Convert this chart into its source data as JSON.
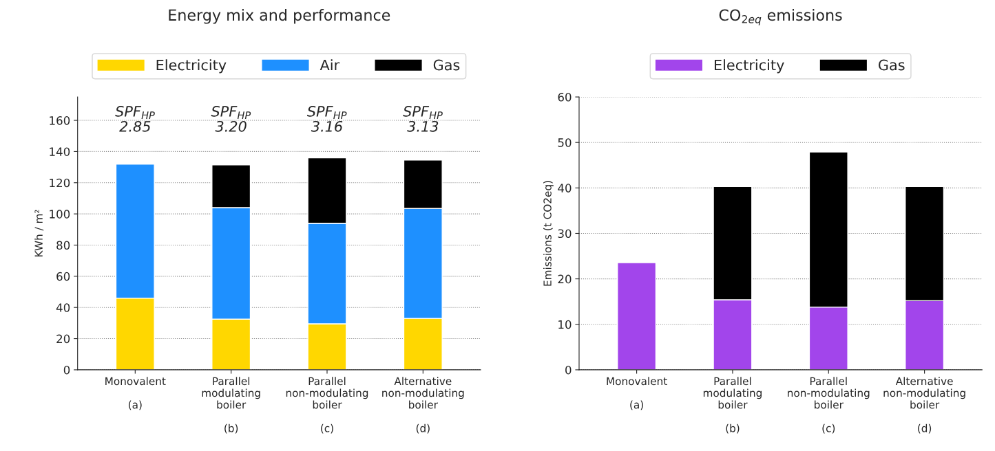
{
  "chart_data": [
    {
      "type": "bar",
      "title": "Energy mix and performance",
      "ylabel": "KWh / m²",
      "stacked": true,
      "legend": "top",
      "grid": "y",
      "categories": [
        "Monovalent\n\n(a)",
        "Parallel\nmodulating\nboiler\n\n(b)",
        "Parallel\nnon-modulating\nboiler\n\n(c)",
        "Alternative\nnon-modulating\nboiler\n\n(d)"
      ],
      "series": [
        {
          "name": "Electricity",
          "color": "#ffd700",
          "values": [
            46,
            32.5,
            29.5,
            33
          ]
        },
        {
          "name": "Air",
          "color": "#1e90ff",
          "values": [
            86,
            71.5,
            64.5,
            70.5
          ]
        },
        {
          "name": "Gas",
          "color": "#000000",
          "values": [
            null,
            27.5,
            42,
            31
          ]
        }
      ],
      "ylim": [
        0,
        175
      ],
      "yticks": [
        0,
        20,
        40,
        60,
        80,
        100,
        120,
        140,
        160
      ],
      "annotations": [
        "SPF$_{HP}$\n2.85",
        "SPF$_{HP}$\n3.20",
        "SPF$_{HP}$\n3.16",
        "SPF$_{HP}$\n3.13"
      ]
    },
    {
      "type": "bar",
      "title": "CO$_{2eq}$ emissions",
      "ylabel": "Emissions (t CO2eq)",
      "stacked": true,
      "legend": "top",
      "grid": "y",
      "categories": [
        "Monovalent\n\n(a)",
        "Parallel\nmodulating\nboiler\n\n(b)",
        "Parallel\nnon-modulating\nboiler\n\n(c)",
        "Alternative\nnon-modulating\nboiler\n\n(d)"
      ],
      "series": [
        {
          "name": "Electricity",
          "color": "#a245eb",
          "values": [
            23.6,
            15.4,
            13.8,
            15.2
          ]
        },
        {
          "name": "Gas",
          "color": "#000000",
          "values": [
            null,
            24.9,
            34.1,
            25.1
          ]
        }
      ],
      "ylim": [
        0,
        60
      ],
      "yticks": [
        0,
        10,
        20,
        30,
        40,
        50,
        60
      ]
    }
  ]
}
